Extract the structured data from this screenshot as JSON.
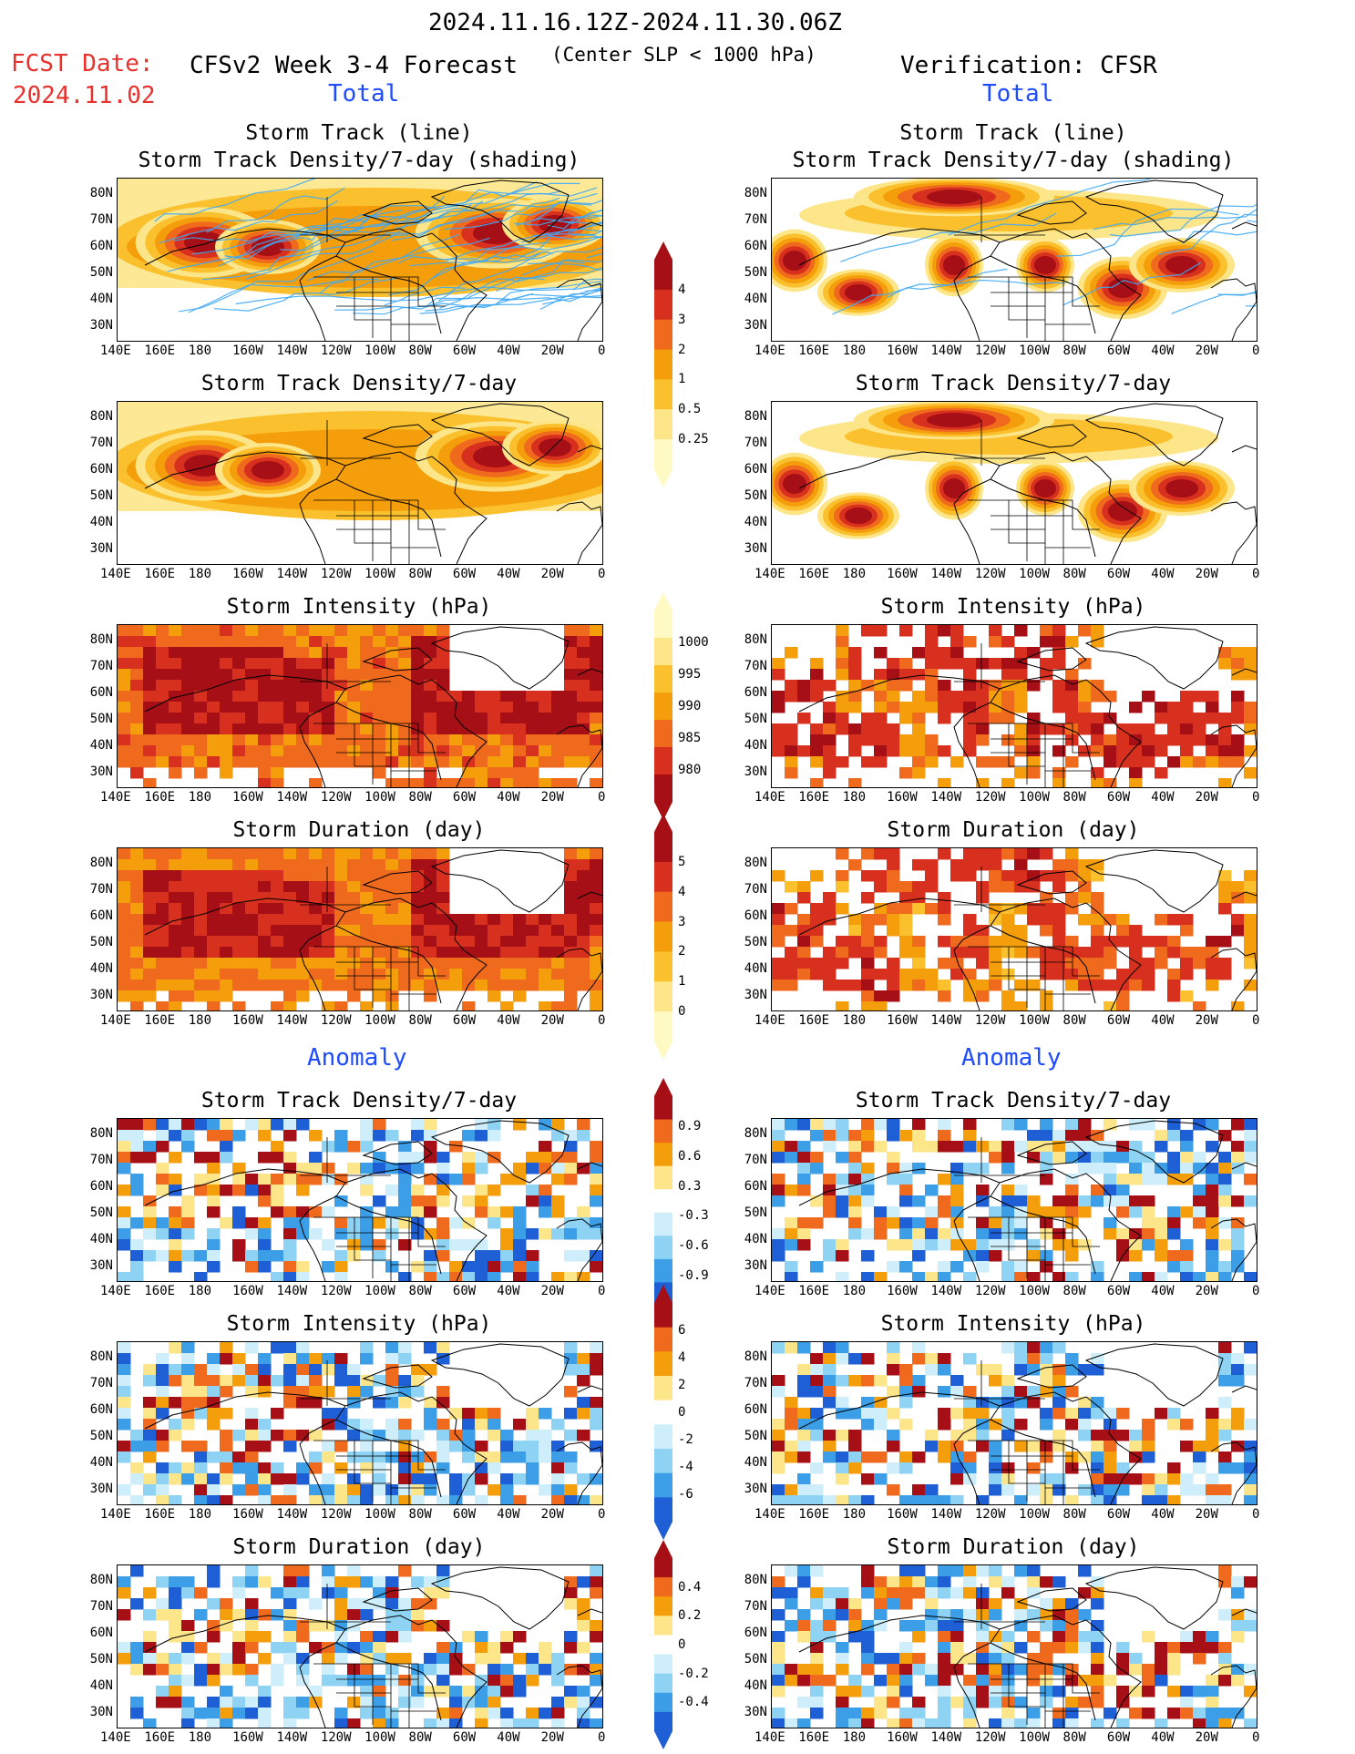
{
  "header": {
    "period": "2024.11.16.12Z-2024.11.30.06Z",
    "fcst_label": "FCST Date:",
    "fcst_date": "2024.11.02",
    "model": "CFSv2 Week 3-4 Forecast",
    "criterion": "(Center SLP < 1000 hPa)",
    "verification": "Verification: CFSR"
  },
  "sections": {
    "total": "Total",
    "anomaly": "Anomaly"
  },
  "panel_titles": {
    "track_line": "Storm Track (line)",
    "track_shading": "Storm Track Density/7-day (shading)",
    "density": "Storm Track Density/7-day",
    "intensity": "Storm Intensity (hPa)",
    "duration": "Storm Duration (day)"
  },
  "axes": {
    "lat_labels": [
      "80N",
      "70N",
      "60N",
      "50N",
      "40N",
      "30N"
    ],
    "lon_labels": [
      "140E",
      "160E",
      "180",
      "160W",
      "140W",
      "120W",
      "100W",
      "80W",
      "60W",
      "40W",
      "20W",
      "0"
    ]
  },
  "colorbars": {
    "density_total": [
      "4",
      "3",
      "2",
      "1",
      "0.5",
      "0.25"
    ],
    "intensity_total": [
      "1000",
      "995",
      "990",
      "985",
      "980"
    ],
    "duration_total": [
      "5",
      "4",
      "3",
      "2",
      "1",
      "0"
    ],
    "density_anom": [
      "0.9",
      "0.6",
      "0.3",
      "-0.3",
      "-0.6",
      "-0.9"
    ],
    "intensity_anom": [
      "6",
      "4",
      "2",
      "0",
      "-2",
      "-4",
      "-6"
    ],
    "duration_anom": [
      "0.4",
      "0.2",
      "0",
      "-0.2",
      "-0.4"
    ]
  },
  "colors": {
    "total_scale": [
      "#fff9c4",
      "#fde68a",
      "#fbc02d",
      "#f59e0b",
      "#f06a1e",
      "#d7301f",
      "#a50f15"
    ],
    "anom_warm": [
      "#fde68a",
      "#f59e0b",
      "#f06a1e",
      "#a50f15"
    ],
    "anom_cool": [
      "#cdeefa",
      "#8fd3f4",
      "#3b9ee6",
      "#1f5fd6"
    ],
    "track_line": "#3fa9f5"
  }
}
